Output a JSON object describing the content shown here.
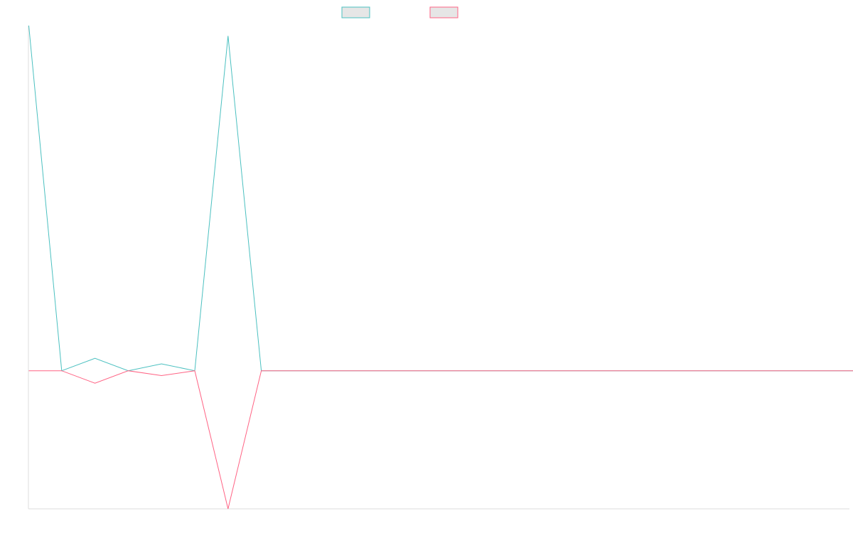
{
  "chart_data": {
    "type": "line",
    "title": "",
    "xlabel": "",
    "ylabel": "",
    "grid": false,
    "legend_position": "top-center",
    "x": [
      0,
      1,
      2,
      3,
      4,
      5,
      6,
      7,
      8,
      9,
      10,
      11,
      12,
      13,
      14,
      15,
      16,
      17,
      18,
      19,
      20,
      21,
      22,
      23,
      24,
      25,
      26
    ],
    "ylim": [
      -20,
      50
    ],
    "series": [
      {
        "color": "#4bc0c0",
        "fill": "#e6e6e6",
        "values": [
          50,
          0,
          1.8,
          0,
          1,
          0,
          48.5,
          0,
          0,
          0,
          0,
          0,
          0,
          0,
          0,
          0,
          0,
          0,
          0,
          0,
          0,
          0,
          0,
          0,
          0,
          0,
          0
        ]
      },
      {
        "color": "#ff6384",
        "fill": "#e6e6e6",
        "values": [
          0,
          0,
          -1.8,
          0,
          -0.7,
          0,
          -20,
          0,
          0,
          0,
          0,
          0,
          0,
          0,
          0,
          0,
          0,
          0,
          0,
          0,
          0,
          0,
          0,
          0,
          0,
          0,
          0
        ]
      }
    ]
  }
}
